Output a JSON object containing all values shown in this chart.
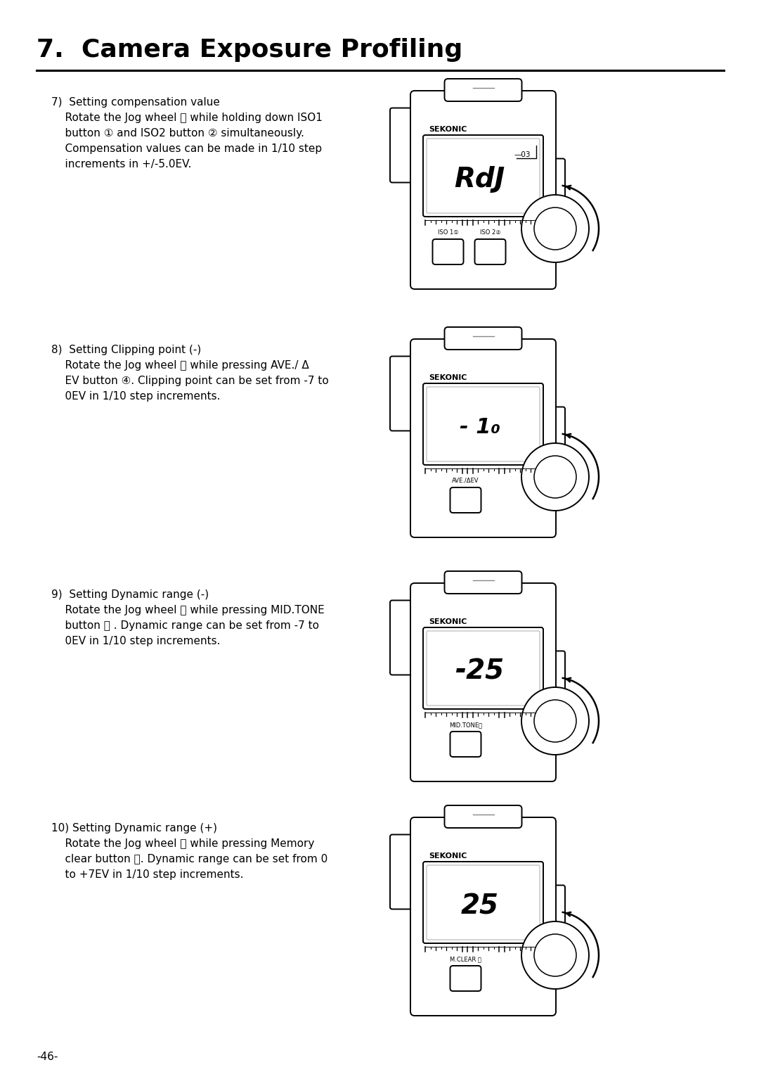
{
  "title": "7.  Camera Exposure Profiling",
  "page_number": "-46-",
  "background_color": "#ffffff",
  "text_color": "#000000",
  "sections": [
    {
      "number": "7)",
      "heading": "Setting compensation value",
      "lines": [
        "7)  Setting compensation value",
        "    Rotate the Jog wheel ⓤ while holding down ISO1",
        "    button ① and ISO2 button ② simultaneously.",
        "    Compensation values can be made in 1/10 step",
        "    increments in +/-5.0EV."
      ],
      "display_text": "RdJ",
      "display_small": "—03",
      "label_left": "ISO 1①",
      "label_right": "ISO 2②",
      "has_two_buttons": true
    },
    {
      "number": "8)",
      "heading": "Setting Clipping point (-)",
      "lines": [
        "8)  Setting Clipping point (-)",
        "    Rotate the Jog wheel ⓤ while pressing AVE./ Δ",
        "    EV button ④. Clipping point can be set from -7 to",
        "    0EV in 1/10 step increments."
      ],
      "display_text": "- 1₀",
      "display_small": "",
      "label_left": "AVE./ΔEV",
      "label_right": "",
      "has_two_buttons": false
    },
    {
      "number": "9)",
      "heading": "Setting Dynamic range (-)",
      "lines": [
        "9)  Setting Dynamic range (-)",
        "    Rotate the Jog wheel ⓤ while pressing MID.TONE",
        "    button ⓞ . Dynamic range can be set from -7 to",
        "    0EV in 1/10 step increments."
      ],
      "display_text": "-25",
      "display_small": "",
      "label_left": "MID.TONEⓞ",
      "label_right": "",
      "has_two_buttons": false
    },
    {
      "number": "10)",
      "heading": "Setting Dynamic range (+)",
      "lines": [
        "10) Setting Dynamic range (+)",
        "    Rotate the Jog wheel ⓤ while pressing Memory",
        "    clear button ⓘ. Dynamic range can be set from 0",
        "    to +7EV in 1/10 step increments."
      ],
      "display_text": "25",
      "display_small": "",
      "label_left": "M.CLEAR ⓘ",
      "label_right": "",
      "has_two_buttons": false
    }
  ]
}
